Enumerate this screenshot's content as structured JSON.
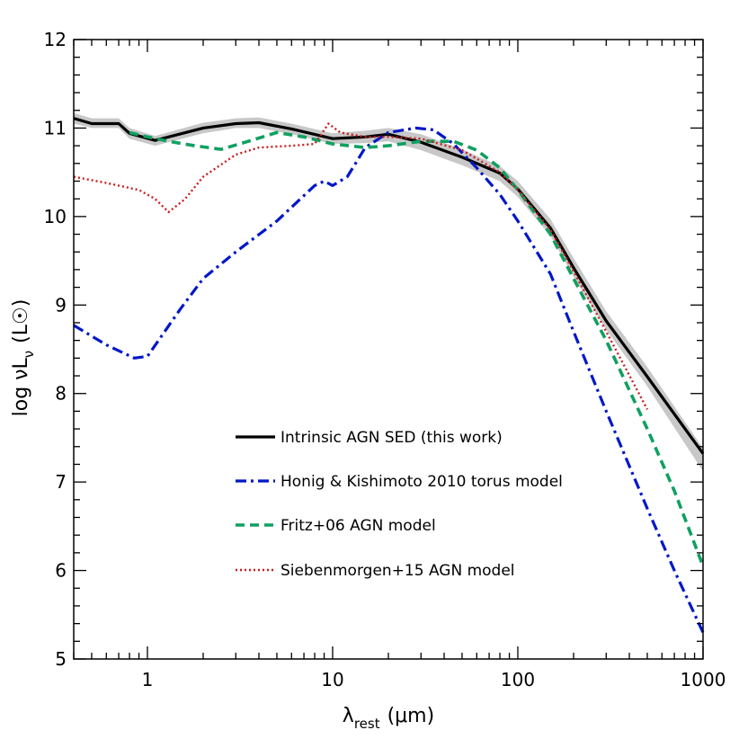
{
  "chart_data": {
    "type": "line",
    "x_scale": "log",
    "xlim": [
      0.4,
      1000
    ],
    "ylim": [
      5,
      12
    ],
    "grid": false,
    "legend_placement": "bottom-center",
    "xlabel": {
      "main": "λ",
      "sub": "rest",
      "unit": "(μm)"
    },
    "ylabel": {
      "main": "log νL",
      "sub": "ν",
      "unit": "(L☉)"
    },
    "x_ticks": [
      {
        "value": 1,
        "label": "1"
      },
      {
        "value": 10,
        "label": "10"
      },
      {
        "value": 100,
        "label": "100"
      },
      {
        "value": 1000,
        "label": "1000"
      }
    ],
    "y_ticks": [
      {
        "value": 5,
        "label": "5"
      },
      {
        "value": 6,
        "label": "6"
      },
      {
        "value": 7,
        "label": "7"
      },
      {
        "value": 8,
        "label": "8"
      },
      {
        "value": 9,
        "label": "9"
      },
      {
        "value": 10,
        "label": "10"
      },
      {
        "value": 11,
        "label": "11"
      },
      {
        "value": 12,
        "label": "12"
      }
    ],
    "uncertainty_band": {
      "color": "#c8c8c8",
      "x": [
        0.4,
        0.5,
        0.7,
        0.8,
        1.1,
        2,
        3,
        4,
        6,
        10,
        15,
        20,
        30,
        50,
        80,
        100,
        150,
        200,
        300,
        500,
        1000
      ],
      "lower": [
        11.05,
        11.0,
        11.0,
        10.88,
        10.8,
        10.94,
        11.0,
        11.0,
        10.93,
        10.82,
        10.83,
        10.85,
        10.75,
        10.58,
        10.4,
        10.22,
        9.78,
        9.32,
        8.72,
        8.08,
        7.12
      ],
      "upper": [
        11.17,
        11.11,
        11.11,
        11.0,
        10.91,
        11.06,
        11.11,
        11.12,
        11.05,
        10.94,
        10.97,
        11.0,
        10.93,
        10.76,
        10.57,
        10.4,
        9.97,
        9.53,
        8.93,
        8.3,
        7.38
      ]
    },
    "series": [
      {
        "name": "Intrinsic AGN SED (this work)",
        "color": "#000000",
        "style": "solid",
        "x": [
          0.4,
          0.5,
          0.7,
          0.8,
          1.1,
          2,
          3,
          4,
          6,
          10,
          15,
          20,
          30,
          50,
          80,
          100,
          150,
          200,
          300,
          500,
          1000
        ],
        "y": [
          11.11,
          11.05,
          11.05,
          10.94,
          10.86,
          11.0,
          11.05,
          11.06,
          10.99,
          10.88,
          10.9,
          10.93,
          10.84,
          10.67,
          10.49,
          10.31,
          9.87,
          9.42,
          8.82,
          8.19,
          7.32
        ]
      },
      {
        "name": "Honig & Kishimoto 2010 torus model",
        "color": "#0018c8",
        "style": "dashdot",
        "x": [
          0.4,
          0.6,
          0.85,
          1.0,
          1.5,
          2,
          3,
          5,
          8,
          9,
          10,
          12,
          15,
          20,
          28,
          35,
          45,
          60,
          80,
          100,
          150,
          200,
          300,
          500,
          700,
          1000
        ],
        "y": [
          8.77,
          8.55,
          8.4,
          8.42,
          8.95,
          9.3,
          9.6,
          9.95,
          10.35,
          10.4,
          10.35,
          10.45,
          10.78,
          10.95,
          11.0,
          10.98,
          10.82,
          10.55,
          10.25,
          9.95,
          9.35,
          8.7,
          7.8,
          6.7,
          6.0,
          5.3
        ]
      },
      {
        "name": "Fritz+06 AGN model",
        "color": "#10a060",
        "style": "dashed",
        "x": [
          0.8,
          1.0,
          1.3,
          1.8,
          2.5,
          3.5,
          5,
          7,
          10,
          15,
          20,
          30,
          45,
          60,
          80,
          100,
          150,
          200,
          300,
          500,
          700,
          1000
        ],
        "y": [
          10.95,
          10.9,
          10.85,
          10.8,
          10.76,
          10.85,
          10.95,
          10.9,
          10.82,
          10.78,
          10.8,
          10.85,
          10.85,
          10.75,
          10.55,
          10.3,
          9.8,
          9.3,
          8.6,
          7.6,
          6.9,
          6.05
        ]
      },
      {
        "name": "Siebenmorgen+15 AGN model",
        "color": "#c81e1e",
        "style": "dotted",
        "x": [
          0.4,
          0.6,
          0.9,
          1.1,
          1.3,
          1.6,
          2,
          3,
          4,
          6,
          8,
          9.5,
          11,
          15,
          20,
          30,
          50,
          80,
          100,
          150,
          200,
          300,
          500
        ],
        "y": [
          10.45,
          10.38,
          10.3,
          10.2,
          10.05,
          10.2,
          10.45,
          10.7,
          10.78,
          10.8,
          10.82,
          11.05,
          10.95,
          10.9,
          10.9,
          10.88,
          10.75,
          10.5,
          10.3,
          9.85,
          9.38,
          8.7,
          7.82
        ]
      }
    ]
  }
}
